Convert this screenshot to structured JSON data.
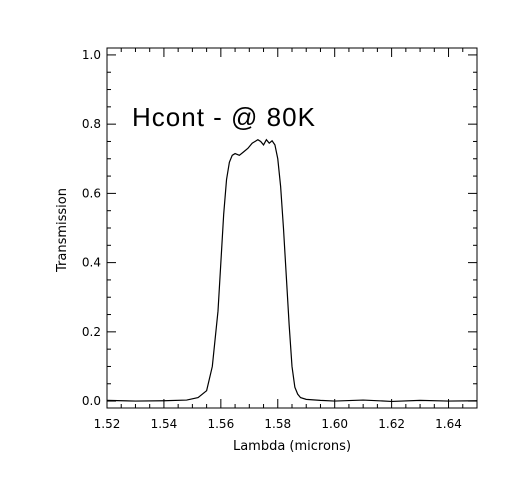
{
  "chart_data": {
    "type": "line",
    "annotation": "Hcont - @ 80K",
    "xlabel": "Lambda (microns)",
    "ylabel": "Transmission",
    "xlim": [
      1.52,
      1.65
    ],
    "ylim": [
      -0.02,
      1.02
    ],
    "xticks": [
      1.52,
      1.54,
      1.56,
      1.58,
      1.6,
      1.62,
      1.64
    ],
    "xtick_labels": [
      "1.52",
      "1.54",
      "1.56",
      "1.58",
      "1.60",
      "1.62",
      "1.64"
    ],
    "yticks": [
      0.0,
      0.2,
      0.4,
      0.6,
      0.8,
      1.0
    ],
    "ytick_labels": [
      "0.0",
      "0.2",
      "0.4",
      "0.6",
      "0.8",
      "1.0"
    ],
    "grid": false,
    "series": [
      {
        "x": [
          1.52,
          1.53,
          1.54,
          1.548,
          1.552,
          1.555,
          1.557,
          1.559,
          1.56,
          1.561,
          1.562,
          1.563,
          1.564,
          1.565,
          1.5665,
          1.568,
          1.5695,
          1.571,
          1.572,
          1.573,
          1.574,
          1.575,
          1.576,
          1.577,
          1.578,
          1.579,
          1.58,
          1.581,
          1.582,
          1.583,
          1.584,
          1.585,
          1.586,
          1.587,
          1.588,
          1.59,
          1.595,
          1.6,
          1.61,
          1.62,
          1.63,
          1.64,
          1.65
        ],
        "y": [
          0.002,
          0.0,
          0.001,
          0.003,
          0.01,
          0.03,
          0.1,
          0.26,
          0.4,
          0.54,
          0.64,
          0.69,
          0.71,
          0.715,
          0.71,
          0.72,
          0.73,
          0.745,
          0.75,
          0.755,
          0.75,
          0.74,
          0.755,
          0.745,
          0.752,
          0.74,
          0.7,
          0.62,
          0.5,
          0.36,
          0.22,
          0.1,
          0.04,
          0.02,
          0.01,
          0.005,
          0.002,
          0.0,
          0.003,
          -0.001,
          0.002,
          0.0,
          0.001
        ]
      }
    ]
  }
}
